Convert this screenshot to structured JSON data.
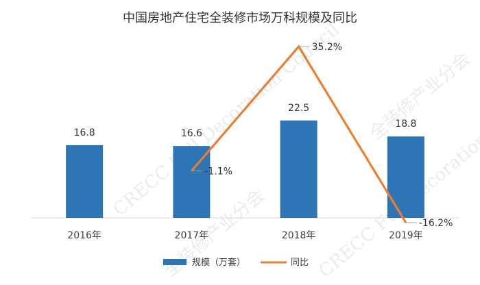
{
  "chart_data": {
    "type": "bar",
    "title": "中国房地产住宅全装修市场万科规模及同比",
    "categories": [
      "2016年",
      "2017年",
      "2018年",
      "2019年"
    ],
    "series": [
      {
        "name": "规模（万套）",
        "kind": "bar",
        "values": [
          16.8,
          16.6,
          22.5,
          18.8
        ],
        "labels": [
          "16.8",
          "16.6",
          "22.5",
          "18.8"
        ],
        "color": "#2e75b6"
      },
      {
        "name": "同比",
        "kind": "line",
        "values": [
          null,
          -1.1,
          35.2,
          -16.2
        ],
        "labels": [
          "",
          "-1.1%",
          "35.2%",
          "-16.2%"
        ],
        "color": "#ed7d31"
      }
    ],
    "y_bar_range": [
      0,
      25
    ],
    "y_line_range": [
      -20,
      40
    ],
    "grid": false,
    "legend": "bottom"
  },
  "watermark": {
    "text": "CRECC Full Decoration Council",
    "text_cn": "全装修产业分会"
  }
}
